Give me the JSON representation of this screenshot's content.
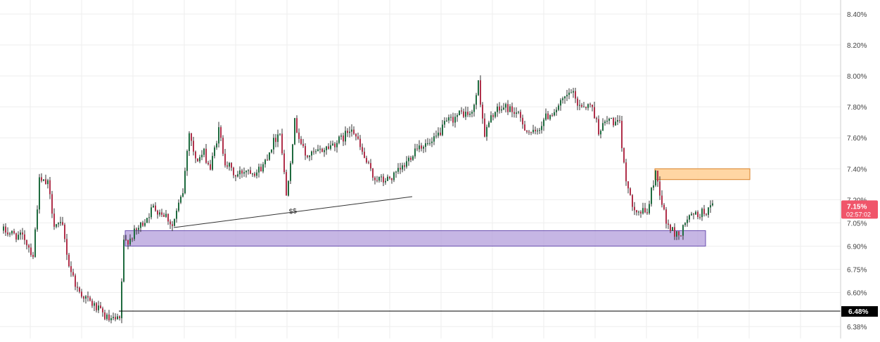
{
  "colors": {
    "up_candle": "#1f6b3f",
    "down_candle": "#b0304a",
    "wick": "#333333",
    "grid": "#eeeeee",
    "demand_zone": "#b39ddb",
    "supply_zone": "#ffd199",
    "price_label_bg": "#f0556a",
    "level_label_bg": "#000000",
    "axis_text": "#444444"
  },
  "annotations": {
    "liquidity_label": "$$",
    "last_price_label": "7.15%",
    "countdown_label": "02:57:02",
    "level_label": "6.48%"
  },
  "chart_data": {
    "type": "candlestick",
    "title": "",
    "xlabel": "",
    "ylabel": "",
    "ylim": [
      6.33,
      8.51
    ],
    "y_ticks": [
      "8.40%",
      "8.20%",
      "8.00%",
      "7.80%",
      "7.60%",
      "7.40%",
      "7.20%",
      "7.05%",
      "6.90%",
      "6.75%",
      "6.60%",
      "6.38%"
    ],
    "y_tick_values": [
      8.4,
      8.2,
      8.0,
      7.8,
      7.6,
      7.4,
      7.2,
      7.05,
      6.9,
      6.75,
      6.6,
      6.38
    ],
    "grid": true,
    "last_price": 7.15,
    "horizontal_level": 6.48,
    "demand_zone": {
      "from_index": 58,
      "to_index": 333,
      "low": 6.9,
      "high": 7.0
    },
    "supply_zone": {
      "from_index": 309,
      "to_index": 354,
      "low": 7.33,
      "high": 7.4
    },
    "trendline": {
      "from_index": 81,
      "from_value": 7.02,
      "to_index": 194,
      "to_value": 7.22
    },
    "candle_count": 337,
    "path_anchors": [
      [
        0,
        7.0
      ],
      [
        10,
        6.95
      ],
      [
        14,
        6.84
      ],
      [
        17,
        7.32
      ],
      [
        21,
        7.3
      ],
      [
        24,
        7.05
      ],
      [
        28,
        7.02
      ],
      [
        31,
        6.78
      ],
      [
        35,
        6.62
      ],
      [
        40,
        6.55
      ],
      [
        44,
        6.5
      ],
      [
        50,
        6.42
      ],
      [
        55,
        6.42
      ],
      [
        57,
        6.92
      ],
      [
        60,
        6.95
      ],
      [
        66,
        7.05
      ],
      [
        71,
        7.15
      ],
      [
        77,
        7.1
      ],
      [
        80,
        7.03
      ],
      [
        85,
        7.25
      ],
      [
        88,
        7.65
      ],
      [
        91,
        7.45
      ],
      [
        95,
        7.5
      ],
      [
        98,
        7.4
      ],
      [
        102,
        7.65
      ],
      [
        105,
        7.45
      ],
      [
        110,
        7.35
      ],
      [
        115,
        7.4
      ],
      [
        120,
        7.38
      ],
      [
        123,
        7.42
      ],
      [
        127,
        7.55
      ],
      [
        131,
        7.65
      ],
      [
        134,
        7.23
      ],
      [
        138,
        7.7
      ],
      [
        143,
        7.48
      ],
      [
        148,
        7.5
      ],
      [
        155,
        7.55
      ],
      [
        161,
        7.6
      ],
      [
        165,
        7.68
      ],
      [
        170,
        7.5
      ],
      [
        175,
        7.35
      ],
      [
        180,
        7.32
      ],
      [
        185,
        7.35
      ],
      [
        190,
        7.42
      ],
      [
        196,
        7.55
      ],
      [
        203,
        7.56
      ],
      [
        210,
        7.7
      ],
      [
        217,
        7.76
      ],
      [
        222,
        7.75
      ],
      [
        225,
        7.95
      ],
      [
        228,
        7.62
      ],
      [
        232,
        7.76
      ],
      [
        238,
        7.8
      ],
      [
        243,
        7.76
      ],
      [
        248,
        7.65
      ],
      [
        252,
        7.62
      ],
      [
        256,
        7.72
      ],
      [
        263,
        7.8
      ],
      [
        269,
        7.9
      ],
      [
        272,
        7.82
      ],
      [
        279,
        7.8
      ],
      [
        282,
        7.65
      ],
      [
        287,
        7.72
      ],
      [
        292,
        7.68
      ],
      [
        294,
        7.42
      ],
      [
        297,
        7.2
      ],
      [
        301,
        7.12
      ],
      [
        305,
        7.12
      ],
      [
        309,
        7.38
      ],
      [
        311,
        7.25
      ],
      [
        314,
        7.05
      ],
      [
        318,
        6.98
      ],
      [
        321,
        6.98
      ],
      [
        324,
        7.08
      ],
      [
        328,
        7.1
      ],
      [
        332,
        7.12
      ],
      [
        336,
        7.15
      ]
    ]
  }
}
